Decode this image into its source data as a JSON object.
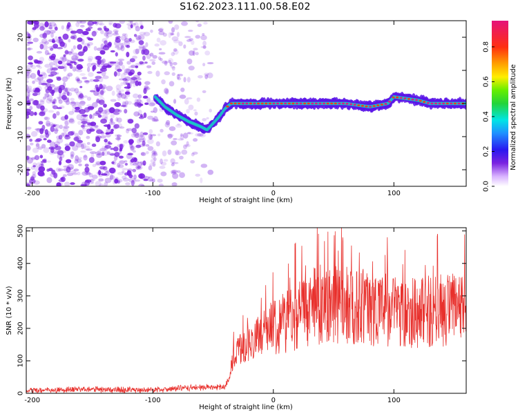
{
  "title": "S162.2023.111.00.58.E02",
  "colors": {
    "snr_line": "#e8302c",
    "trace_core": "#e5127a",
    "trace_mid": "#19c8c8",
    "trace_outer": "#5a14e8",
    "scatter": "#7a22e0"
  },
  "chart_data": [
    {
      "type": "heatmap",
      "xlabel": "Height of straight line (km)",
      "ylabel": "Frequency (Hz)",
      "xlim": [
        -205,
        160
      ],
      "ylim": [
        -25,
        25
      ],
      "xticks": [
        -200,
        -100,
        0,
        100
      ],
      "yticks": [
        -20,
        -10,
        0,
        10,
        20
      ],
      "tone_trace": {
        "x": [
          -98,
          -90,
          -80,
          -70,
          -60,
          -55,
          -50,
          -45,
          -40,
          -35,
          -30,
          -20,
          0,
          20,
          40,
          60,
          80,
          95,
          100,
          110,
          120,
          130,
          140,
          150,
          160
        ],
        "frequency_hz": [
          2,
          -1,
          -3.5,
          -5.5,
          -7,
          -8,
          -6,
          -4,
          -1.5,
          0,
          0,
          0,
          0,
          0,
          0,
          0,
          -1,
          0,
          2,
          1.5,
          1,
          0,
          0,
          0,
          0
        ]
      },
      "noise_region_x": [
        -205,
        -52
      ],
      "colorbar": {
        "label": "Normalized spectral amplitude",
        "range": [
          0.0,
          0.95
        ],
        "ticks": [
          0.0,
          0.2,
          0.4,
          0.6,
          0.8
        ],
        "tick_labels": [
          "0.0",
          "0.2",
          "0.4",
          "0.6",
          "0.8"
        ]
      }
    },
    {
      "type": "line",
      "xlabel": "Height of straight line (km)",
      "ylabel": "SNR (10 * v/v)",
      "xlim": [
        -205,
        160
      ],
      "ylim": [
        0,
        510
      ],
      "xticks": [
        -200,
        -100,
        0,
        100
      ],
      "yticks": [
        0,
        100,
        200,
        300,
        400,
        500
      ],
      "series": [
        {
          "x": [
            -205,
            -180,
            -150,
            -120,
            -100,
            -80,
            -60,
            -40,
            -36,
            -33,
            -30,
            -25,
            -20,
            -10,
            0,
            10,
            20,
            30,
            40,
            50,
            60,
            80,
            100,
            120,
            140,
            160
          ],
          "values": [
            8,
            10,
            12,
            10,
            10,
            15,
            18,
            20,
            60,
            110,
            130,
            140,
            150,
            185,
            215,
            225,
            240,
            260,
            275,
            275,
            270,
            265,
            255,
            250,
            255,
            260
          ]
        }
      ]
    }
  ]
}
